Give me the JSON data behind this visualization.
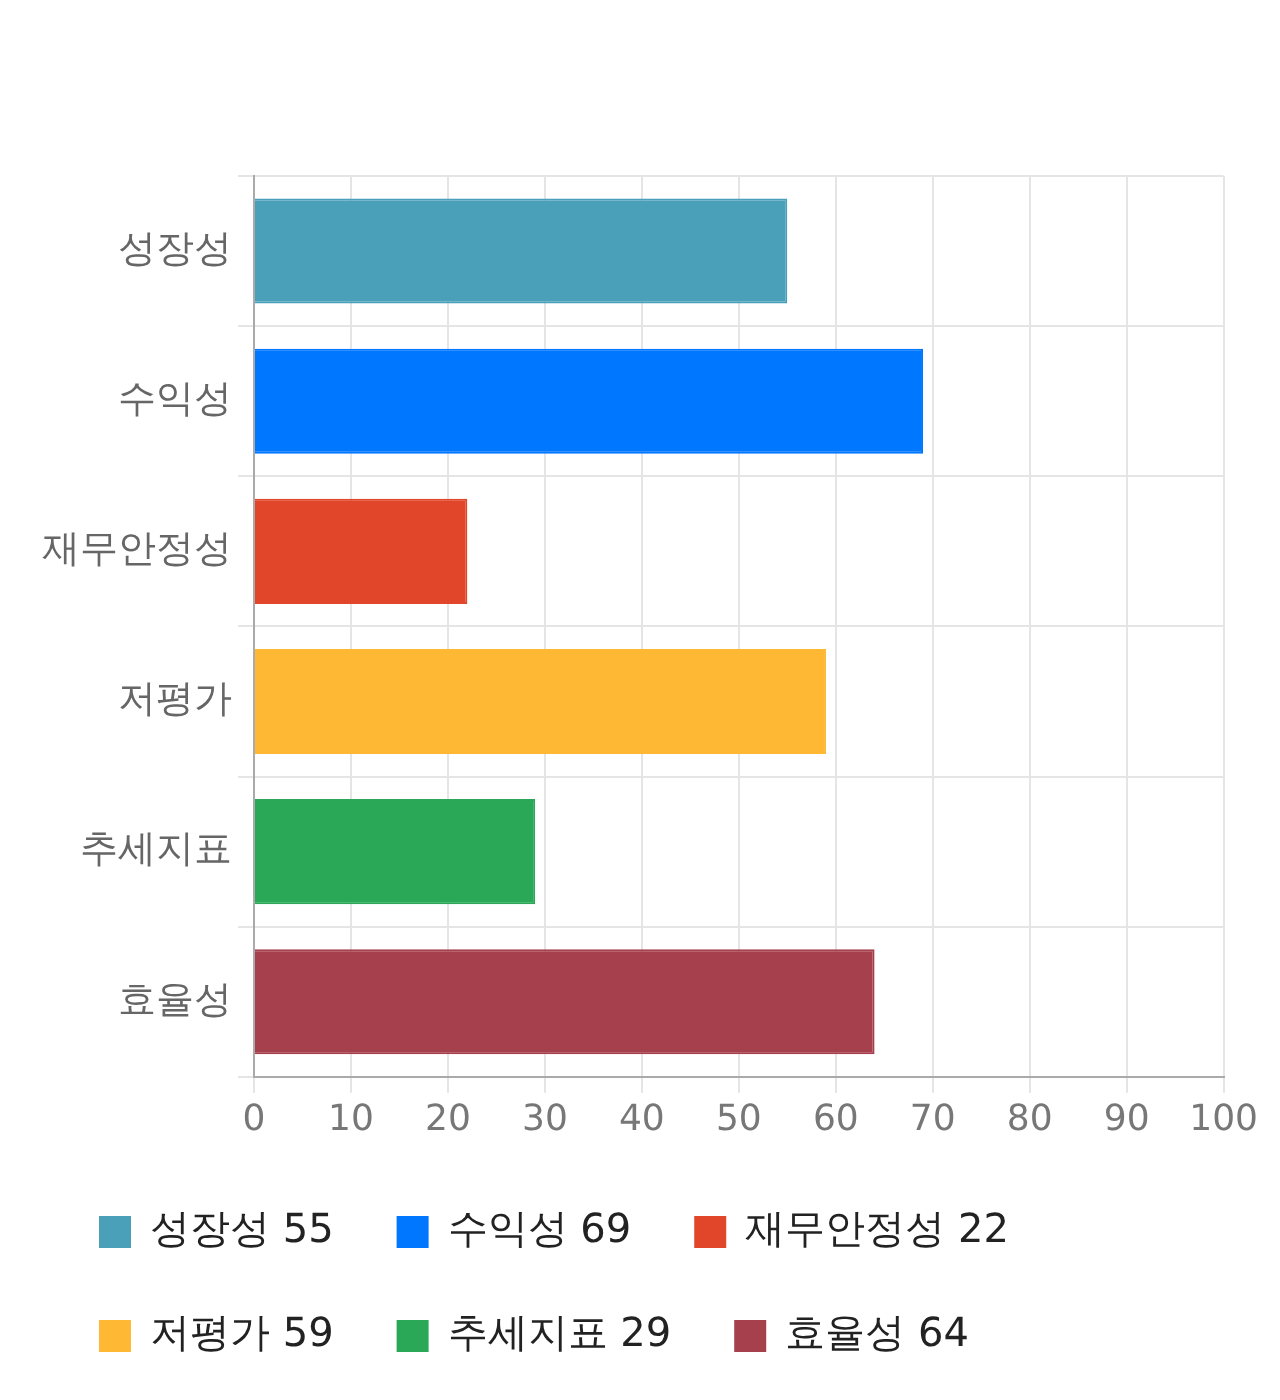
{
  "chart_data": {
    "type": "bar",
    "orientation": "horizontal",
    "stacked": true,
    "categories": [
      "성장성",
      "수익성",
      "재무안정성",
      "저평가",
      "추세지표",
      "효율성"
    ],
    "series": [
      {
        "name": "성장성 55",
        "color": "#4aa0b9",
        "values": [
          55,
          null,
          null,
          null,
          null,
          null
        ]
      },
      {
        "name": "수익성 69",
        "color": "#0077ff",
        "values": [
          null,
          69,
          null,
          null,
          null,
          null
        ]
      },
      {
        "name": "재무안정성 22",
        "color": "#e2462a",
        "values": [
          null,
          null,
          22,
          null,
          null,
          null
        ]
      },
      {
        "name": "저평가 59",
        "color": "#ffb833",
        "values": [
          null,
          null,
          null,
          59,
          null,
          null
        ]
      },
      {
        "name": "추세지표 29",
        "color": "#2aa858",
        "values": [
          null,
          null,
          null,
          null,
          29,
          null
        ]
      },
      {
        "name": "효율성 64",
        "color": "#a6404d",
        "values": [
          null,
          null,
          null,
          null,
          null,
          64
        ]
      }
    ],
    "xlim": [
      0,
      100
    ],
    "xticks": [
      0,
      10,
      20,
      30,
      40,
      50,
      60,
      70,
      80,
      90,
      100
    ],
    "grid": true,
    "legend": "bottom"
  }
}
